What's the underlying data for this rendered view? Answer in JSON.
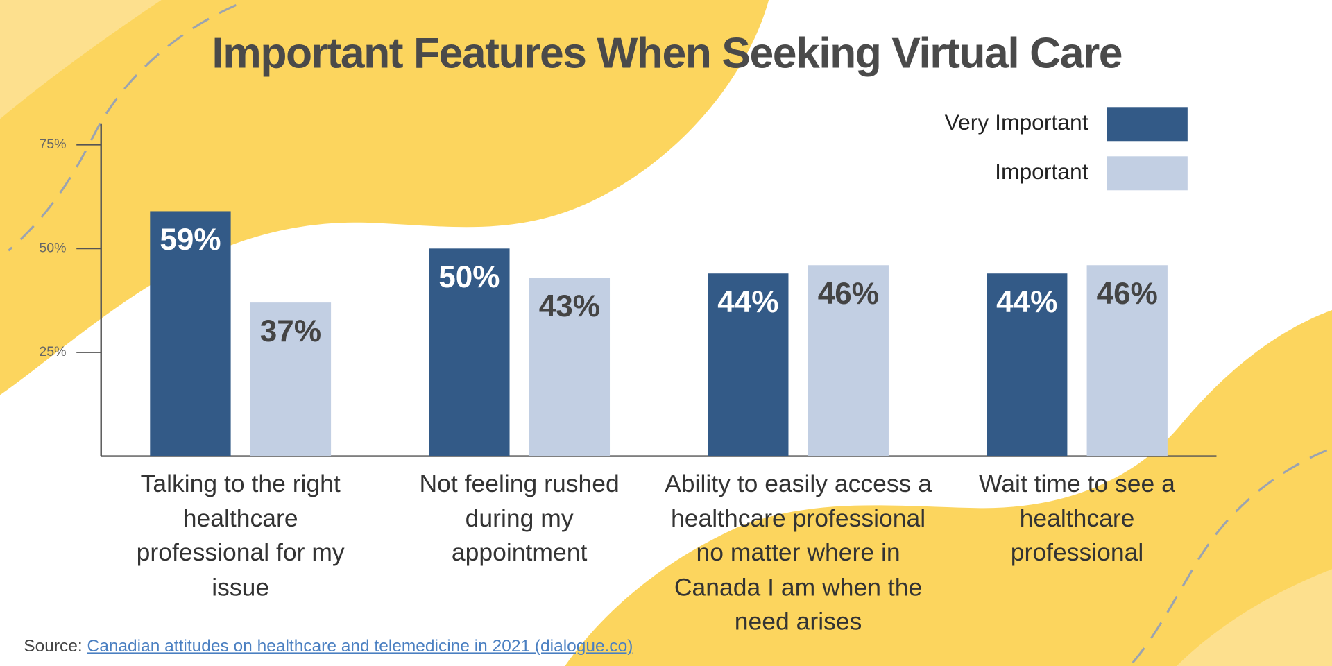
{
  "chart_data": {
    "type": "bar",
    "title": "Important Features When Seeking Virtual Care",
    "categories": [
      "Talking to the right healthcare professional for my issue",
      "Not feeling rushed during my appointment",
      "Ability to easily access a healthcare professional no matter where in Canada I am when the need arises",
      "Wait time to see a healthcare professional"
    ],
    "series": [
      {
        "name": "Very Important",
        "color": "#335a87",
        "values": [
          59,
          50,
          44,
          44
        ],
        "value_labels": [
          "59%",
          "50%",
          "44%",
          "44%"
        ]
      },
      {
        "name": "Important",
        "color": "#c2cfe3",
        "values": [
          37,
          43,
          46,
          46
        ],
        "value_labels": [
          "37%",
          "43%",
          "46%",
          "46%"
        ]
      }
    ],
    "ylim": [
      0,
      80
    ],
    "yticks": [
      {
        "value": 25,
        "label": "25%"
      },
      {
        "value": 50,
        "label": "50%"
      },
      {
        "value": 75,
        "label": "75%"
      }
    ],
    "legend": "top-right"
  },
  "source": {
    "label": "Source:",
    "link": "Canadian attitudes on healthcare and telemedicine in 2021 (dialogue.co)"
  }
}
